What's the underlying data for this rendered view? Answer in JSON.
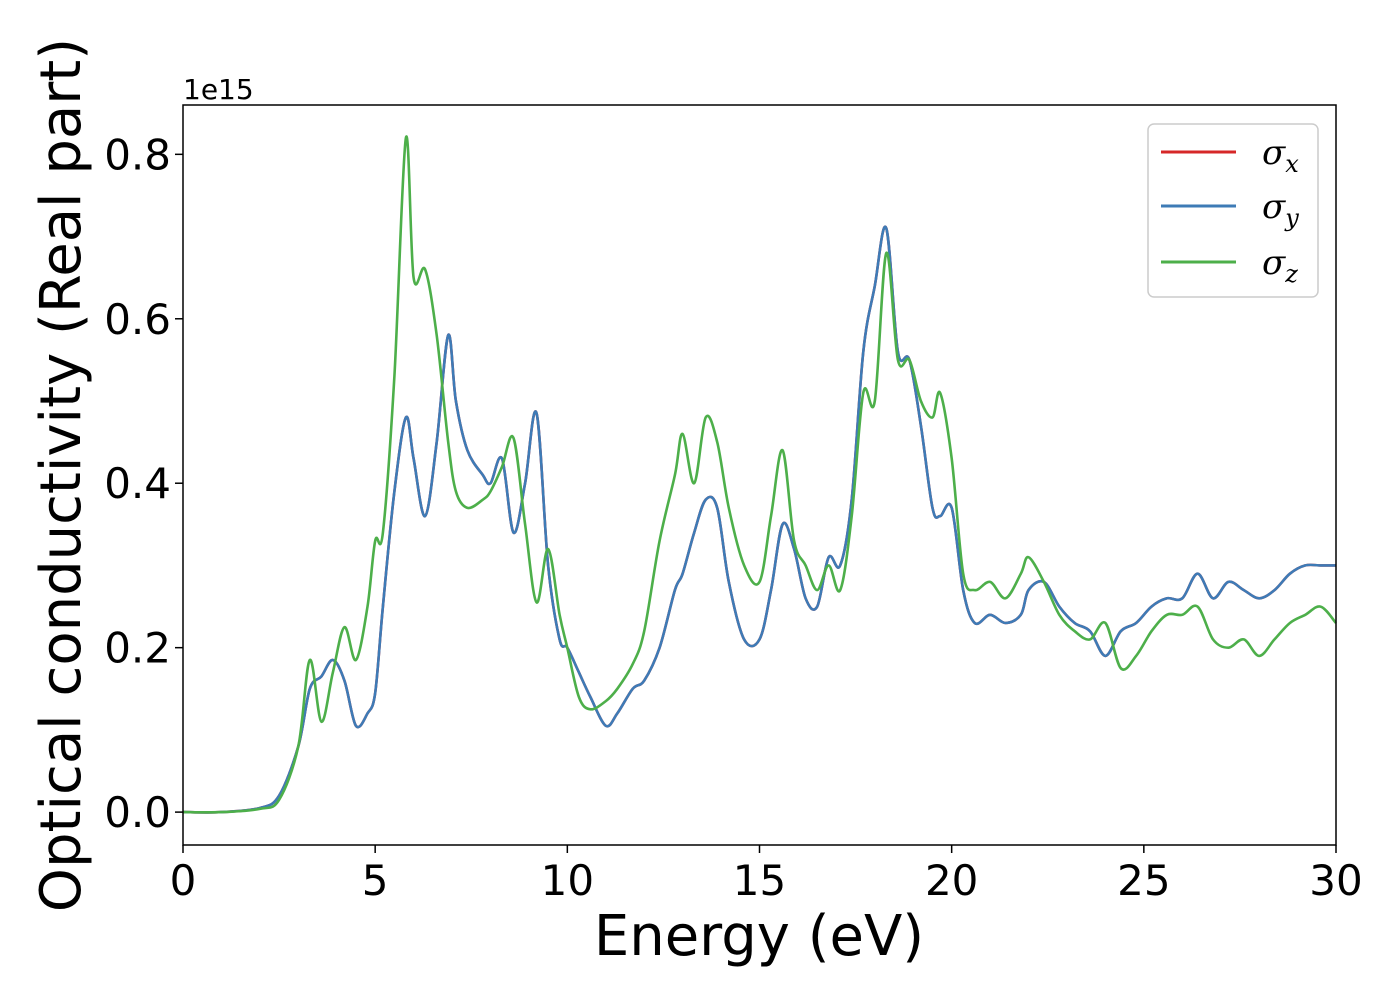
{
  "chart_data": {
    "type": "line",
    "xlabel": "Energy (eV)",
    "ylabel": "Optical conductivity (Real part)",
    "y_offset_text": "1e15",
    "xlim": [
      0,
      30
    ],
    "ylim": [
      -0.04,
      0.86
    ],
    "x_ticks": [
      0,
      5,
      10,
      15,
      20,
      25,
      30
    ],
    "x_tick_labels": [
      "0",
      "5",
      "10",
      "15",
      "20",
      "25",
      "30"
    ],
    "y_ticks": [
      0.0,
      0.2,
      0.4,
      0.6,
      0.8
    ],
    "y_tick_labels": [
      "0.0",
      "0.2",
      "0.4",
      "0.6",
      "0.8"
    ],
    "grid": false,
    "legend_position": "top-right",
    "x": [
      0,
      1,
      2,
      2.5,
      3,
      3.3,
      3.6,
      3.9,
      4.2,
      4.5,
      4.8,
      5.0,
      5.2,
      5.5,
      5.8,
      6.0,
      6.3,
      6.6,
      6.9,
      7.1,
      7.4,
      7.8,
      8.0,
      8.3,
      8.6,
      8.9,
      9.2,
      9.5,
      9.8,
      10.0,
      10.3,
      10.6,
      11.0,
      11.3,
      11.7,
      12.0,
      12.4,
      12.8,
      13.0,
      13.3,
      13.6,
      13.9,
      14.2,
      14.6,
      15.0,
      15.3,
      15.6,
      15.9,
      16.2,
      16.5,
      16.8,
      17.1,
      17.4,
      17.7,
      18.0,
      18.3,
      18.6,
      18.9,
      19.2,
      19.5,
      19.7,
      20.0,
      20.3,
      20.6,
      21.0,
      21.4,
      21.8,
      22.0,
      22.4,
      22.8,
      23.2,
      23.6,
      24.0,
      24.4,
      24.8,
      25.2,
      25.6,
      26.0,
      26.4,
      26.8,
      27.2,
      27.6,
      28.0,
      28.4,
      28.8,
      29.2,
      29.6,
      30.0
    ],
    "series": [
      {
        "name": "σx",
        "color": "#d62728",
        "values": [
          0.0,
          0.0,
          0.005,
          0.02,
          0.08,
          0.15,
          0.165,
          0.185,
          0.16,
          0.105,
          0.12,
          0.145,
          0.25,
          0.39,
          0.48,
          0.43,
          0.36,
          0.45,
          0.58,
          0.5,
          0.44,
          0.41,
          0.4,
          0.43,
          0.34,
          0.4,
          0.485,
          0.3,
          0.21,
          0.2,
          0.17,
          0.14,
          0.105,
          0.12,
          0.15,
          0.16,
          0.2,
          0.27,
          0.29,
          0.34,
          0.38,
          0.37,
          0.28,
          0.21,
          0.21,
          0.27,
          0.35,
          0.32,
          0.26,
          0.25,
          0.31,
          0.3,
          0.38,
          0.56,
          0.64,
          0.71,
          0.56,
          0.55,
          0.47,
          0.37,
          0.36,
          0.37,
          0.27,
          0.23,
          0.24,
          0.23,
          0.24,
          0.27,
          0.28,
          0.25,
          0.23,
          0.22,
          0.19,
          0.22,
          0.23,
          0.25,
          0.26,
          0.26,
          0.29,
          0.26,
          0.28,
          0.27,
          0.26,
          0.27,
          0.29,
          0.3,
          0.3,
          0.3
        ]
      },
      {
        "name": "σy",
        "color": "#3e7bb6",
        "values": [
          0.0,
          0.0,
          0.005,
          0.02,
          0.08,
          0.15,
          0.165,
          0.185,
          0.16,
          0.105,
          0.12,
          0.145,
          0.25,
          0.39,
          0.48,
          0.43,
          0.36,
          0.45,
          0.58,
          0.5,
          0.44,
          0.41,
          0.4,
          0.43,
          0.34,
          0.4,
          0.485,
          0.3,
          0.21,
          0.2,
          0.17,
          0.14,
          0.105,
          0.12,
          0.15,
          0.16,
          0.2,
          0.27,
          0.29,
          0.34,
          0.38,
          0.37,
          0.28,
          0.21,
          0.21,
          0.27,
          0.35,
          0.32,
          0.26,
          0.25,
          0.31,
          0.3,
          0.38,
          0.56,
          0.64,
          0.71,
          0.56,
          0.55,
          0.47,
          0.37,
          0.36,
          0.37,
          0.27,
          0.23,
          0.24,
          0.23,
          0.24,
          0.27,
          0.28,
          0.25,
          0.23,
          0.22,
          0.19,
          0.22,
          0.23,
          0.25,
          0.26,
          0.26,
          0.29,
          0.26,
          0.28,
          0.27,
          0.26,
          0.27,
          0.29,
          0.3,
          0.3,
          0.3
        ]
      },
      {
        "name": "σz",
        "color": "#4daf4a",
        "values": [
          0.0,
          0.0,
          0.004,
          0.015,
          0.08,
          0.185,
          0.11,
          0.17,
          0.225,
          0.185,
          0.25,
          0.33,
          0.34,
          0.53,
          0.82,
          0.65,
          0.66,
          0.58,
          0.45,
          0.39,
          0.37,
          0.38,
          0.39,
          0.42,
          0.455,
          0.35,
          0.255,
          0.32,
          0.24,
          0.2,
          0.14,
          0.125,
          0.135,
          0.15,
          0.18,
          0.22,
          0.33,
          0.41,
          0.46,
          0.4,
          0.48,
          0.45,
          0.37,
          0.3,
          0.28,
          0.36,
          0.44,
          0.33,
          0.3,
          0.27,
          0.3,
          0.27,
          0.36,
          0.51,
          0.5,
          0.68,
          0.55,
          0.55,
          0.5,
          0.48,
          0.51,
          0.43,
          0.29,
          0.27,
          0.28,
          0.26,
          0.29,
          0.31,
          0.28,
          0.24,
          0.22,
          0.21,
          0.23,
          0.175,
          0.19,
          0.22,
          0.24,
          0.24,
          0.25,
          0.21,
          0.2,
          0.21,
          0.19,
          0.21,
          0.23,
          0.24,
          0.25,
          0.23
        ]
      }
    ]
  },
  "legend": {
    "items": [
      {
        "symbol": "σ",
        "sub": "x",
        "color": "#d62728"
      },
      {
        "symbol": "σ",
        "sub": "y",
        "color": "#3e7bb6"
      },
      {
        "symbol": "σ",
        "sub": "z",
        "color": "#4daf4a"
      }
    ]
  }
}
